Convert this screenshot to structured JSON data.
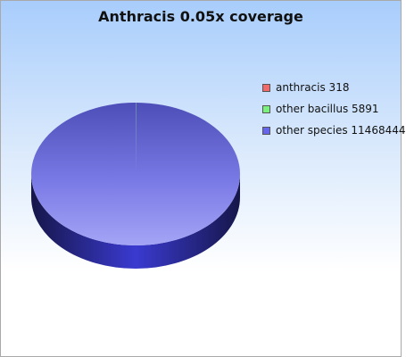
{
  "chart_data": {
    "type": "pie",
    "title": "Anthracis 0.05x coverage",
    "legend_position": "right",
    "three_d": true,
    "slices": [
      {
        "label": "anthracis",
        "value": 318,
        "color": "#f06a6a",
        "legend_text": "anthracis 318"
      },
      {
        "label": "other bacillus",
        "value": 5891,
        "color": "#7cf07c",
        "legend_text": "other bacillus 5891"
      },
      {
        "label": "other species",
        "value": 11468444,
        "color": "#6464ec",
        "legend_text": "other species 11468444"
      }
    ]
  }
}
